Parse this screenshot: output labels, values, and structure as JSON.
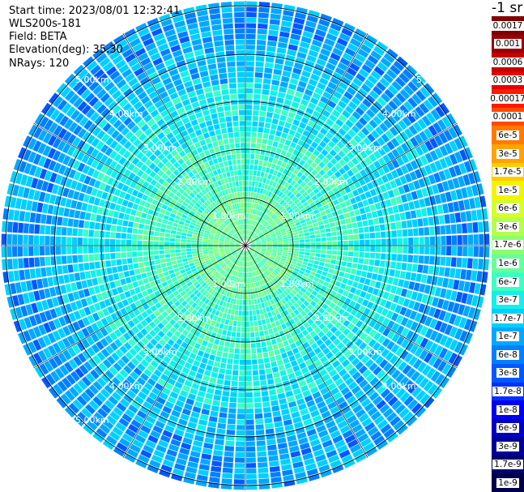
{
  "header": {
    "start_time": "Start time: 2023/08/01 12:32:41",
    "instrument": "WLS200s-181",
    "field": "Field: BETA",
    "elevation": "Elevation(deg): 35.30",
    "nrays": "NRays: 120"
  },
  "colorbar": {
    "unit_label": "-1 sr",
    "levels": [
      {
        "label": "0.0017",
        "color": "#7f0000"
      },
      {
        "label": "0.001",
        "color": "#9c0000"
      },
      {
        "label": "0.0006",
        "color": "#c40000"
      },
      {
        "label": "0.0003",
        "color": "#e80000"
      },
      {
        "label": "0.00017",
        "color": "#ff1a00"
      },
      {
        "label": "0.0001",
        "color": "#ff4a00"
      },
      {
        "label": "6e-5",
        "color": "#ff7a00"
      },
      {
        "label": "3e-5",
        "color": "#ffa300"
      },
      {
        "label": "1.7e-5",
        "color": "#ffcc00"
      },
      {
        "label": "1e-5",
        "color": "#f4f400"
      },
      {
        "label": "6e-6",
        "color": "#d6ff2a"
      },
      {
        "label": "3e-6",
        "color": "#b4ff4e"
      },
      {
        "label": "1.7e-6",
        "color": "#8cff70"
      },
      {
        "label": "1e-6",
        "color": "#66ff9a"
      },
      {
        "label": "6e-7",
        "color": "#3dffc4"
      },
      {
        "label": "3e-7",
        "color": "#14f0e8"
      },
      {
        "label": "1.7e-7",
        "color": "#00d0ff"
      },
      {
        "label": "1e-7",
        "color": "#00a8ff"
      },
      {
        "label": "6e-8",
        "color": "#0080ff"
      },
      {
        "label": "3e-8",
        "color": "#0058ff"
      },
      {
        "label": "1.7e-8",
        "color": "#0030ff"
      },
      {
        "label": "1e-8",
        "color": "#0000f0"
      },
      {
        "label": "6e-9",
        "color": "#0000c4"
      },
      {
        "label": "3e-9",
        "color": "#000098"
      },
      {
        "label": "1.7e-9",
        "color": "#00006e"
      },
      {
        "label": "1e-9",
        "color": "#00004a"
      }
    ]
  },
  "range_labels": {
    "r1": "1.00km",
    "r2": "2.00km",
    "r3": "3.00km",
    "r4": "4.00km",
    "r5": "5.00km"
  }
}
